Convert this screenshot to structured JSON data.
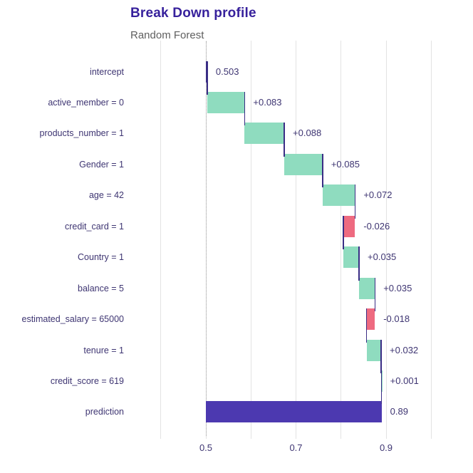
{
  "chart_data": {
    "type": "bar",
    "subtype": "breakdown-waterfall",
    "orientation": "horizontal",
    "title": "Break Down profile",
    "subtitle": "Random Forest",
    "xlabel": "",
    "ylabel": "",
    "legend": "none",
    "x_axis": {
      "range": [
        0.39,
        1.07
      ],
      "gridlines": [
        0.4,
        0.5,
        0.6,
        0.7,
        0.8,
        0.9,
        1.0
      ],
      "ticks": [
        {
          "value": 0.5,
          "label": "0.5"
        },
        {
          "value": 0.7,
          "label": "0.7"
        },
        {
          "value": 0.9,
          "label": "0.9"
        }
      ]
    },
    "intercept_line": 0.503,
    "rows": [
      {
        "label": "intercept",
        "kind": "intercept",
        "start": 0.5,
        "end": 0.503,
        "contribution": 0.503,
        "value_label": "0.503"
      },
      {
        "label": "active_member = 0",
        "kind": "positive",
        "start": 0.503,
        "end": 0.586,
        "contribution": 0.083,
        "value_label": "+0.083"
      },
      {
        "label": "products_number = 1",
        "kind": "positive",
        "start": 0.586,
        "end": 0.674,
        "contribution": 0.088,
        "value_label": "+0.088"
      },
      {
        "label": "Gender = 1",
        "kind": "positive",
        "start": 0.674,
        "end": 0.759,
        "contribution": 0.085,
        "value_label": "+0.085"
      },
      {
        "label": "age = 42",
        "kind": "positive",
        "start": 0.759,
        "end": 0.831,
        "contribution": 0.072,
        "value_label": "+0.072"
      },
      {
        "label": "credit_card = 1",
        "kind": "negative",
        "start": 0.831,
        "end": 0.805,
        "contribution": -0.026,
        "value_label": "-0.026"
      },
      {
        "label": "Country = 1",
        "kind": "positive",
        "start": 0.805,
        "end": 0.84,
        "contribution": 0.035,
        "value_label": "+0.035"
      },
      {
        "label": "balance = 5",
        "kind": "positive",
        "start": 0.84,
        "end": 0.875,
        "contribution": 0.035,
        "value_label": "+0.035"
      },
      {
        "label": "estimated_salary = 65000",
        "kind": "negative",
        "start": 0.875,
        "end": 0.857,
        "contribution": -0.018,
        "value_label": "-0.018"
      },
      {
        "label": "tenure = 1",
        "kind": "positive",
        "start": 0.857,
        "end": 0.889,
        "contribution": 0.032,
        "value_label": "+0.032"
      },
      {
        "label": "credit_score = 619",
        "kind": "positive",
        "start": 0.889,
        "end": 0.89,
        "contribution": 0.001,
        "value_label": "+0.001"
      },
      {
        "label": "prediction",
        "kind": "prediction",
        "start": 0.5,
        "end": 0.89,
        "contribution": 0.89,
        "value_label": "0.89"
      }
    ],
    "colors": {
      "positive": "#8fdcbf",
      "negative": "#ee6a80",
      "prediction": "#4c39b0",
      "intercept": "#3a2d85",
      "connector": "#3a2d85",
      "text": "#3e3572",
      "title": "#37219c",
      "subtitle": "#5f5f5f",
      "grid": "#e3e3e3",
      "dotted_line": "#a8a8a8"
    }
  }
}
